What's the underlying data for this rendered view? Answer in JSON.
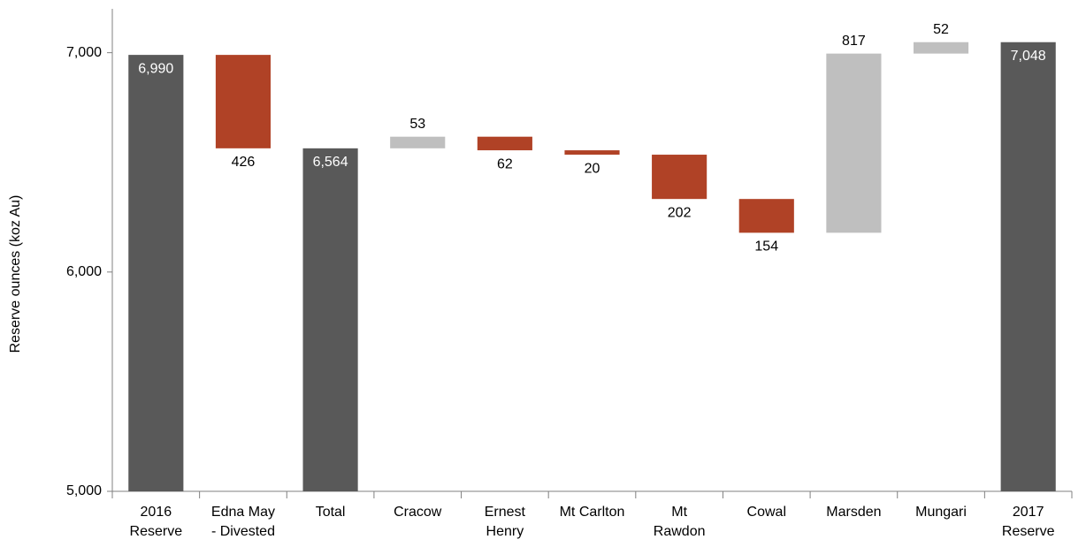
{
  "chart_data": {
    "type": "waterfall",
    "y_label": "Reserve ounces (koz Au)",
    "categories": [
      [
        "2016",
        "Reserve"
      ],
      [
        "Edna May",
        "- Divested"
      ],
      [
        "Total"
      ],
      [
        "Cracow"
      ],
      [
        "Ernest",
        "Henry"
      ],
      [
        "Mt Carlton"
      ],
      [
        "Mt",
        "Rawdon"
      ],
      [
        "Cowal"
      ],
      [
        "Marsden"
      ],
      [
        "Mungari"
      ],
      [
        "2017",
        "Reserve"
      ]
    ],
    "measure": [
      "total",
      "relative",
      "total",
      "relative",
      "relative",
      "relative",
      "relative",
      "relative",
      "relative",
      "relative",
      "total"
    ],
    "values": [
      6990,
      -426,
      6564,
      53,
      -62,
      -20,
      -202,
      -154,
      817,
      52,
      7048
    ],
    "value_labels": [
      "6,990",
      "426",
      "6,564",
      "53",
      "62",
      "20",
      "202",
      "154",
      "817",
      "52",
      "7,048"
    ],
    "colors": {
      "total": "#595959",
      "increase": "#bfbfbf",
      "decrease": "#b04226"
    },
    "ylim": [
      5000,
      7200
    ],
    "yticks": [
      {
        "value": 5000,
        "label": "5,000"
      },
      {
        "value": 6000,
        "label": "6,000"
      },
      {
        "value": 7000,
        "label": "7,000"
      }
    ],
    "grid": false
  }
}
